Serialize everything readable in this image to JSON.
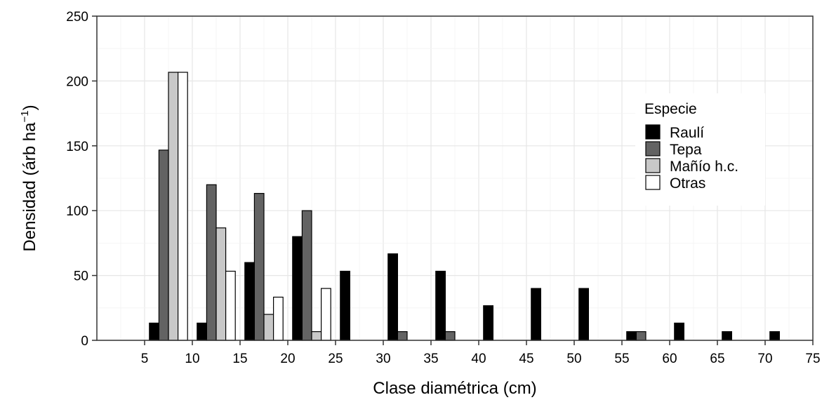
{
  "chart_data": {
    "type": "bar",
    "xlabel": "Clase diamétrica (cm)",
    "ylabel_main": "Densidad (árb ha",
    "ylabel_sup": "−1",
    "ylabel_close": ")",
    "xlim": [
      0,
      75
    ],
    "ylim": [
      0,
      250
    ],
    "xticks": [
      5,
      10,
      15,
      20,
      25,
      30,
      35,
      40,
      45,
      50,
      55,
      60,
      65,
      70,
      75
    ],
    "yticks": [
      0,
      50,
      100,
      150,
      200,
      250
    ],
    "grid": true,
    "legend_position": "right",
    "legend": {
      "title": "Especie",
      "entries": [
        "Raulí",
        "Tepa",
        "Mañío h.c.",
        "Otras"
      ]
    },
    "categories": [
      7.5,
      12.5,
      17.5,
      22.5,
      27.5,
      32.5,
      37.5,
      42.5,
      47.5,
      52.5,
      57.5,
      62.5,
      67.5,
      72.5
    ],
    "series": [
      {
        "name": "Raulí",
        "color": "#000000",
        "values": [
          13.3,
          13.3,
          60,
          80,
          53.3,
          66.7,
          53.3,
          26.7,
          40,
          40,
          6.7,
          13.3,
          6.7,
          6.7
        ]
      },
      {
        "name": "Tepa",
        "color": "#636363",
        "values": [
          146.7,
          120,
          113.3,
          100,
          0,
          6.7,
          6.7,
          0,
          0,
          0,
          6.7,
          0,
          0,
          0
        ]
      },
      {
        "name": "Mañío h.c.",
        "color": "#c8c8c8",
        "values": [
          206.7,
          86.7,
          20,
          6.7,
          0,
          0,
          0,
          0,
          0,
          0,
          0,
          0,
          0,
          0
        ]
      },
      {
        "name": "Otras",
        "color": "#ffffff",
        "values": [
          206.7,
          53.3,
          33.3,
          40,
          0,
          0,
          0,
          0,
          0,
          0,
          0,
          0,
          0,
          0
        ]
      }
    ]
  }
}
